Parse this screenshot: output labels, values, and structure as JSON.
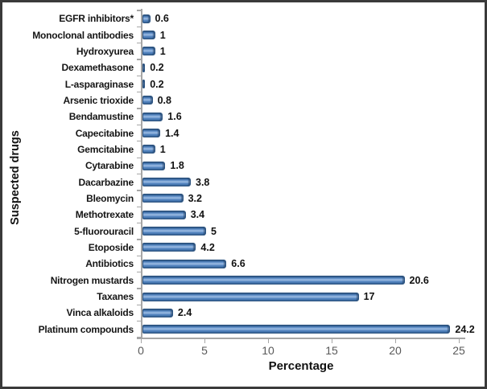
{
  "chart_data": {
    "type": "bar",
    "orientation": "horizontal",
    "title": "",
    "xlabel": "Percentage",
    "ylabel": "Suspected drugs",
    "xlim": [
      0,
      25
    ],
    "x_ticks": [
      "0",
      "5",
      "10",
      "15",
      "20",
      "25"
    ],
    "grid": false,
    "legend": false,
    "categories": [
      "EGFR inhibitors*",
      "Monoclonal antibodies",
      "Hydroxyurea",
      "Dexamethasone",
      "L-asparaginase",
      "Arsenic trioxide",
      "Bendamustine",
      "Capecitabine",
      "Gemcitabine",
      "Cytarabine",
      "Dacarbazine",
      "Bleomycin",
      "Methotrexate",
      "5-fluorouracil",
      "Etoposide",
      "Antibiotics",
      "Nitrogen mustards",
      "Taxanes",
      "Vinca alkaloids",
      "Platinum compounds"
    ],
    "values": [
      0.6,
      1,
      1,
      0.2,
      0.2,
      0.8,
      1.6,
      1.4,
      1,
      1.8,
      3.8,
      3.2,
      3.4,
      5,
      4.2,
      6.6,
      20.6,
      17,
      2.4,
      24.2
    ],
    "value_labels": [
      "0.6",
      "1",
      "1",
      "0.2",
      "0.2",
      "0.8",
      "1.6",
      "1.4",
      "1",
      "1.8",
      "3.8",
      "3.2",
      "3.4",
      "5",
      "4.2",
      "6.6",
      "20.6",
      "17",
      "2.4",
      "24.2"
    ],
    "colors": {
      "bar_fill": "#4f81bd",
      "bar_highlight": "#9dbde4",
      "bar_border": "#2a527f",
      "bar_dark": "#3c6b9f",
      "axis_line": "#a6a6a6",
      "tick_label": "#595959",
      "text": "#111111",
      "frame_border": "#3a3a3a",
      "background": "#ffffff"
    }
  }
}
